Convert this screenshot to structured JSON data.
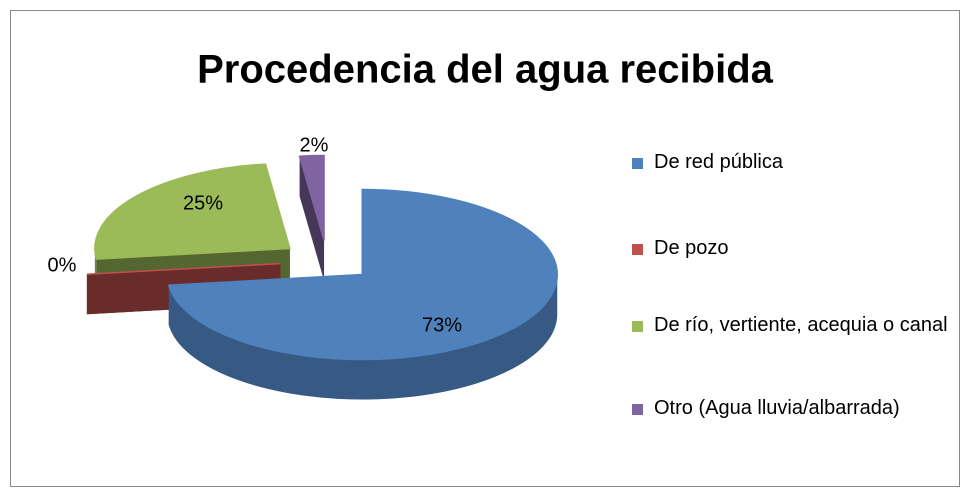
{
  "chart_data": {
    "type": "pie3d",
    "title": "Procedencia del agua recibida",
    "categories": [
      "De red pública",
      "De pozo",
      "De río, vertiente, acequia o canal",
      "Otro (Agua lluvia/albarrada)"
    ],
    "values": [
      73,
      0,
      25,
      2
    ],
    "value_labels": [
      "73%",
      "0%",
      "25%",
      "2%"
    ],
    "colors": [
      "#4f81bd",
      "#c0504d",
      "#9bbb59",
      "#8064a2"
    ],
    "legend": "right"
  }
}
